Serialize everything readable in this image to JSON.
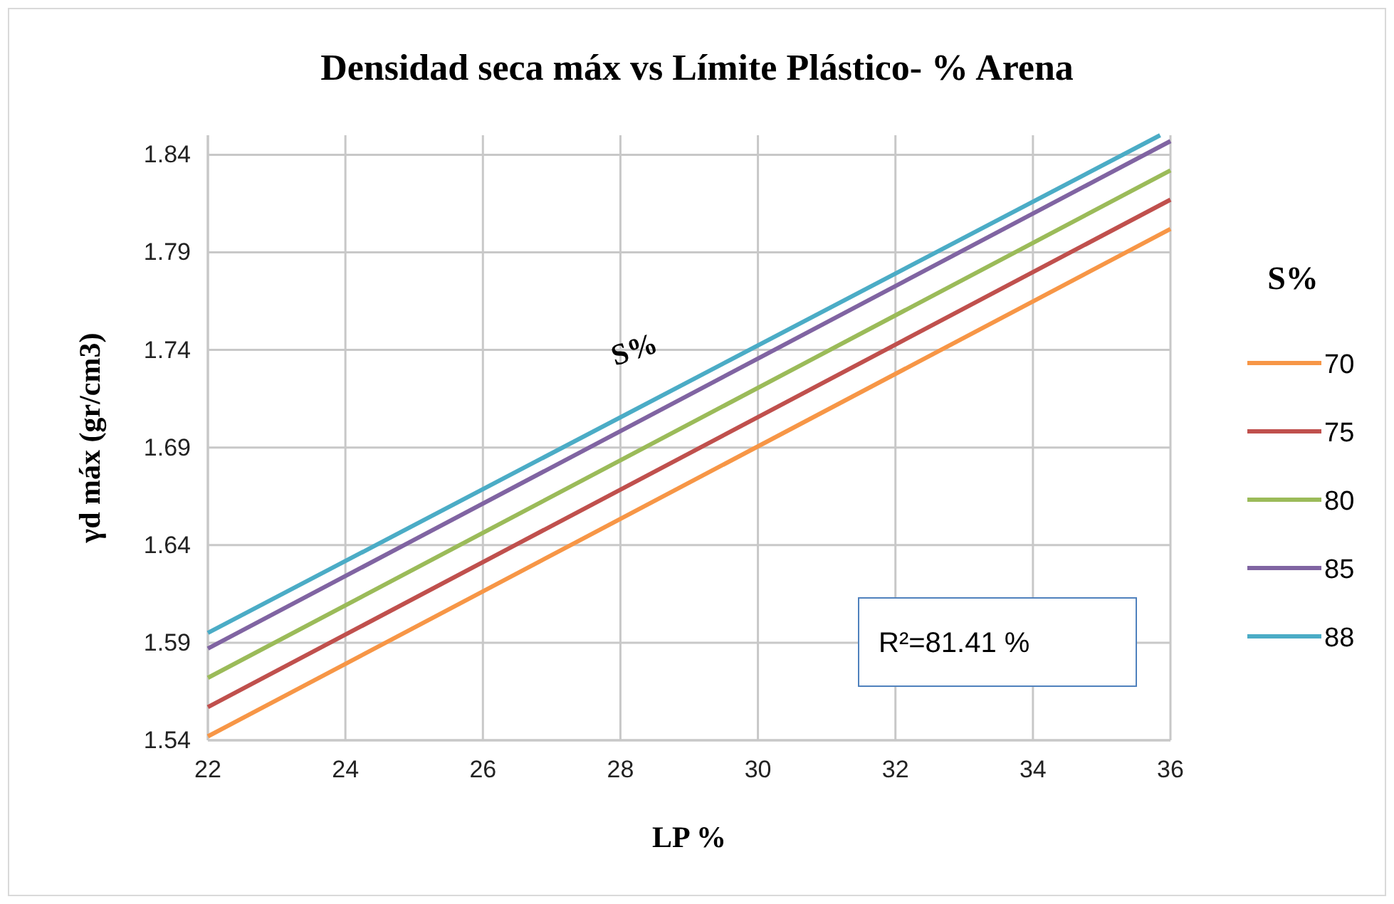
{
  "chart_data": {
    "type": "line",
    "title": "Densidad seca máx vs Límite Plástico- % Arena",
    "xlabel": "LP %",
    "ylabel": "γd máx (gr/cm3)",
    "legend_title": "S%",
    "legend": "right",
    "grid": true,
    "line_style": "solid",
    "marker": "none",
    "xlim": [
      22,
      36
    ],
    "xticks": [
      22,
      24,
      26,
      28,
      30,
      32,
      34,
      36
    ],
    "ylim": [
      1.54,
      1.85
    ],
    "yticks": [
      1.54,
      1.59,
      1.64,
      1.69,
      1.74,
      1.79,
      1.84
    ],
    "annotations": [
      "S%",
      "R²=81.41 %"
    ],
    "series": [
      {
        "name": "70",
        "color": "#f79646",
        "x": [
          22,
          36
        ],
        "values": [
          1.542,
          1.802
        ]
      },
      {
        "name": "75",
        "color": "#c0504d",
        "x": [
          22,
          36
        ],
        "values": [
          1.557,
          1.817
        ]
      },
      {
        "name": "80",
        "color": "#9bbb59",
        "x": [
          22,
          36
        ],
        "values": [
          1.572,
          1.832
        ]
      },
      {
        "name": "85",
        "color": "#8064a2",
        "x": [
          22,
          36
        ],
        "values": [
          1.587,
          1.847
        ]
      },
      {
        "name": "88",
        "color": "#4bacc6",
        "x": [
          22,
          35.85
        ],
        "values": [
          1.595,
          1.85
        ]
      }
    ]
  }
}
